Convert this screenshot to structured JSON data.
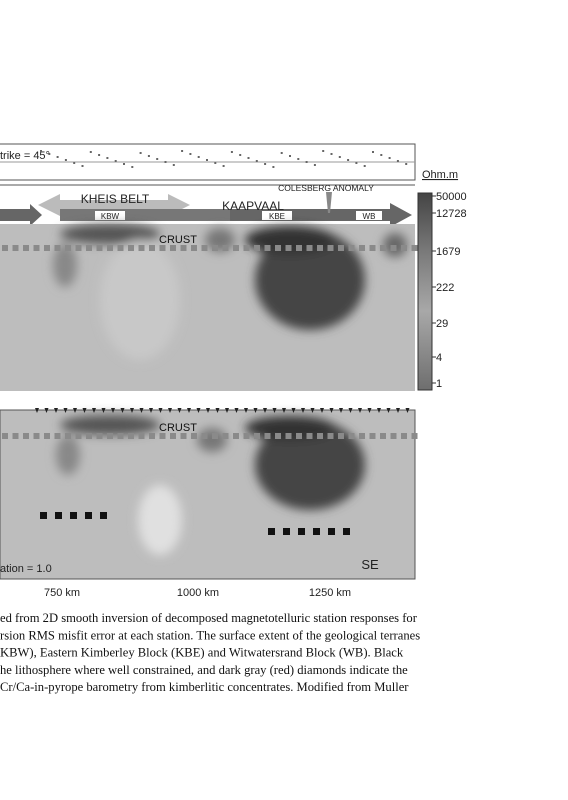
{
  "figure": {
    "strike_label": "trike = 45°",
    "units": "Ohm.m",
    "anomaly": "COLESBERG ANOMALY",
    "belt": "KHEIS BELT",
    "craton": "KAAPVAAL",
    "blocks": [
      "KBW",
      "KBE",
      "WB"
    ],
    "crust_labels": [
      "CRUST",
      "CRUST"
    ],
    "colorbar": [
      50000,
      12728,
      1679,
      222,
      29,
      4,
      1
    ],
    "rms_label": "ation = 1.0",
    "direction": "SE",
    "x_labels": [
      "750 km",
      "1000 km",
      "1250 km"
    ]
  },
  "caption": [
    "ed from 2D smooth inversion of decomposed magnetotelluric station responses for",
    "rsion RMS misfit error at each station. The surface extent of the geological terranes",
    "KBW), Eastern Kimberley Block (KBE) and Witwatersrand Block (WB). Black",
    "he lithosphere where well constrained, and dark gray (red) diamonds indicate the",
    "Cr/Ca-in-pyrope barometry from kimberlitic concentrates. Modified from Muller"
  ]
}
